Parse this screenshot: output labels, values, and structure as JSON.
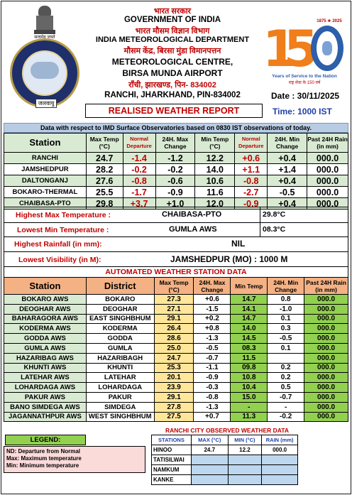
{
  "header": {
    "hindi_govt": "भारत सरकार",
    "govt": "GOVERNMENT OF INDIA",
    "hindi_dept": "भारत मौसम विज्ञान विभाग",
    "dept": "INDIA METEOROLOGICAL DEPARTMENT",
    "hindi_centre": "मौसम केंद्र, बिरसा मुंडा विमानपत्तन",
    "centre": "METEOROLOGICAL CENTRE,",
    "airport": "BIRSA MUNDA AIRPORT",
    "hindi_address": "राँची, झारखण्ड, पिन- 834002",
    "address": "RANCHI, JHARKHAND, PIN-834002",
    "seal_label": "जलवायु",
    "emblem_motto": "सत्यमेव जयते",
    "logo150_top": "1875 ★ 2025",
    "logo150_years": "Years of Service to the Nation",
    "logo150_hindi": "राष्ट्र सेवा के 150 वर्ष",
    "date_label": "Date : 30/11/2025",
    "time_label": "Time: 1000 IST",
    "report_title": "REALISED WEATHER REPORT"
  },
  "banner": "Data with respect to IMD Surface Observatories based on 0830 IST observations of today.",
  "station_table": {
    "headers": [
      "Station",
      "Max Temp (°C)",
      "Normal Departure",
      "24H. Max Change",
      "Min Temp (°C)",
      "Normal Departure",
      "24H. Min Change",
      "Past 24H Rain (in mm)"
    ],
    "rows": [
      [
        "RANCHI",
        "24.7",
        "-1.4",
        "-1.2",
        "12.2",
        "+0.6",
        "+0.4",
        "000.0"
      ],
      [
        "JAMSHEDPUR",
        "28.2",
        "-0.2",
        "-0.2",
        "14.0",
        "+1.1",
        "+1.4",
        "000.0"
      ],
      [
        "DALTONGANJ",
        "27.6",
        "-0.8",
        "-0.6",
        "10.6",
        "-0.8",
        "+0.4",
        "000.0"
      ],
      [
        "BOKARO-THERMAL",
        "25.5",
        "-1.7",
        "-0.9",
        "11.6",
        "-2.7",
        "-0.5",
        "000.0"
      ],
      [
        "CHAIBASA-PTO",
        "29.8",
        "+3.7",
        "+1.0",
        "12.0",
        "-0.9",
        "+0.4",
        "000.0"
      ]
    ]
  },
  "extremes": {
    "max_label": "Highest Max Temperature :",
    "max_station": "CHAIBASA-PTO",
    "max_value": "29.8°C",
    "min_label": "Lowest Min Temperature :",
    "min_station": "GUMLA AWS",
    "min_value": "08.3°C",
    "rain_label": "Highest Rainfall (in mm):",
    "rain_value": "NIL",
    "vis_label": "Lowest Visibility (in M):",
    "vis_value": "JAMSHEDPUR (MO) : 1000 M"
  },
  "aws": {
    "title": "AUTOMATED WEATHER STATION DATA",
    "headers": [
      "Station",
      "District",
      "Max Temp (°C)",
      "24H. Max Change",
      "Min Temp",
      "24H. Min Change",
      "Past 24H Rain (in mm)"
    ],
    "rows": [
      [
        "BOKARO AWS",
        "BOKARO",
        "27.3",
        "+0.6",
        "14.7",
        "0.8",
        "000.0"
      ],
      [
        "DEOGHAR AWS",
        "DEOGHAR",
        "27.1",
        "-1.5",
        "14.1",
        "-1.0",
        "000.0"
      ],
      [
        "BAHARAGORA AWS",
        "EAST SINGHBHUM",
        "29.1",
        "+0.2",
        "14.7",
        "0.1",
        "000.0"
      ],
      [
        "KODERMA AWS",
        "KODERMA",
        "26.4",
        "+0.8",
        "14.0",
        "0.3",
        "000.0"
      ],
      [
        "GODDA AWS",
        "GODDA",
        "28.6",
        "-1.3",
        "14.5",
        "-0.5",
        "000.0"
      ],
      [
        "GUMLA AWS",
        "GUMLA",
        "25.0",
        "-0.5",
        "08.3",
        "0.1",
        "000.0"
      ],
      [
        "HAZARIBAG AWS",
        "HAZARIBAGH",
        "24.7",
        "-0.7",
        "11.5",
        "",
        "000.0"
      ],
      [
        "KHUNTI AWS",
        "KHUNTI",
        "25.3",
        "-1.1",
        "09.8",
        "0.2",
        "000.0"
      ],
      [
        "LATEHAR AWS",
        "LATEHAR",
        "20.1",
        "-0.9",
        "10.8",
        "0.2",
        "000.0"
      ],
      [
        "LOHARDAGA AWS",
        "LOHARDAGA",
        "23.9",
        "-0.3",
        "10.4",
        "0.5",
        "000.0"
      ],
      [
        "PAKUR AWS",
        "PAKUR",
        "29.1",
        "-0.8",
        "15.0",
        "-0.7",
        "000.0"
      ],
      [
        "BANO SIMDEGA AWS",
        "SIMDEGA",
        "27.8",
        "-1.3",
        "-",
        "-",
        "000.0"
      ],
      [
        "JAGANNATHPUR AWS",
        "WEST SINGHBHUM",
        "27.5",
        "+0.7",
        "11.3",
        "-0.2",
        "000.0"
      ]
    ]
  },
  "legend": {
    "title": "LEGEND:",
    "lines": [
      "ND: Departure from Normal",
      "Max: Maximum temperature",
      "Min: Minimum temperature"
    ]
  },
  "ranchi_city": {
    "title": "RANCHI CITY OBSERVED WEATHER DATA",
    "headers": [
      "STATIONS",
      "MAX (°C)",
      "MIN (°C)",
      "RAIN (mm)"
    ],
    "rows": [
      [
        "HINOO",
        "24.7",
        "12.2",
        "000.0"
      ],
      [
        "TATISILWAI",
        "",
        "",
        ""
      ],
      [
        "NAMKUM",
        "",
        "",
        ""
      ],
      [
        "KANKE",
        "",
        "",
        ""
      ]
    ]
  }
}
